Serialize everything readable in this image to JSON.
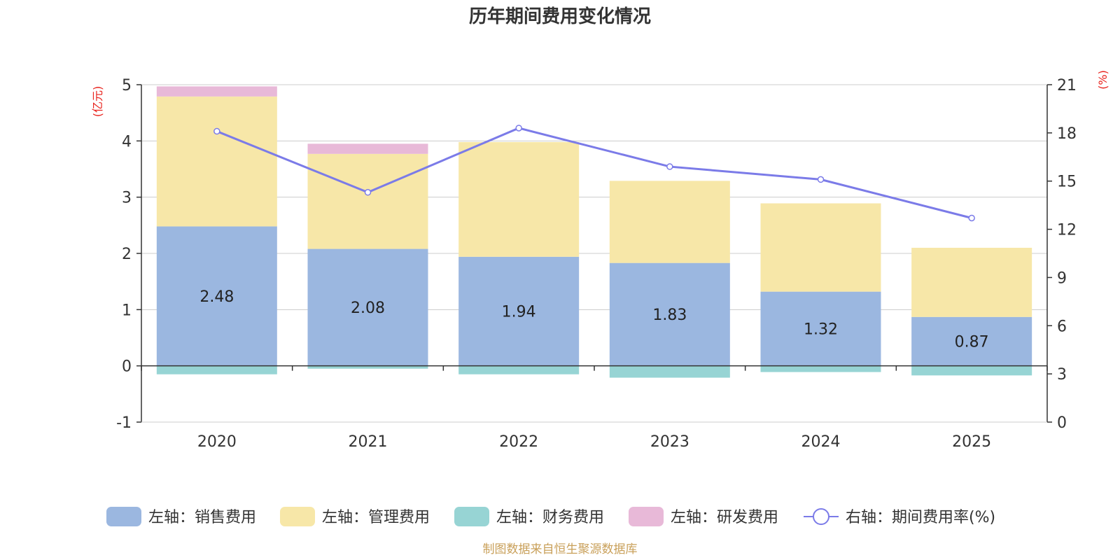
{
  "chart_data": {
    "type": "bar",
    "stacked": true,
    "title": "历年期间费用变化情况",
    "categories": [
      "2020",
      "2021",
      "2022",
      "2023",
      "2024",
      "2025"
    ],
    "series": [
      {
        "name": "左轴：销售费用",
        "axis": "left",
        "color": "#9bb7e0",
        "values": [
          2.48,
          2.08,
          1.94,
          1.83,
          1.32,
          0.87
        ],
        "labels": [
          "2.48",
          "2.08",
          "1.94",
          "1.83",
          "1.32",
          "0.87"
        ]
      },
      {
        "name": "左轴：管理费用",
        "axis": "left",
        "color": "#f7e7a8",
        "values": [
          2.31,
          1.69,
          2.04,
          1.46,
          1.57,
          1.23
        ]
      },
      {
        "name": "左轴：财务费用",
        "axis": "left",
        "color": "#97d4d4",
        "values": [
          -0.15,
          -0.05,
          -0.15,
          -0.21,
          -0.11,
          -0.17
        ]
      },
      {
        "name": "左轴：研发费用",
        "axis": "left",
        "color": "#e8b9d8",
        "values": [
          0.18,
          0.18,
          0.0,
          0.0,
          0.0,
          0.0
        ]
      },
      {
        "name": "右轴：期间费用率(%)",
        "axis": "right",
        "type": "line",
        "color": "#7b7be8",
        "values": [
          18.1,
          14.3,
          18.3,
          15.9,
          15.1,
          12.7
        ]
      }
    ],
    "left_axis": {
      "unit": "(亿元)",
      "min": -1,
      "max": 5,
      "ticks": [
        "-1",
        "0",
        "1",
        "2",
        "3",
        "4",
        "5"
      ]
    },
    "right_axis": {
      "unit": "(%)",
      "min": 0,
      "max": 21,
      "ticks": [
        "0",
        "3",
        "6",
        "9",
        "12",
        "15",
        "18",
        "21"
      ]
    },
    "legend_position": "bottom",
    "source": "制图数据来自恒生聚源数据库"
  }
}
